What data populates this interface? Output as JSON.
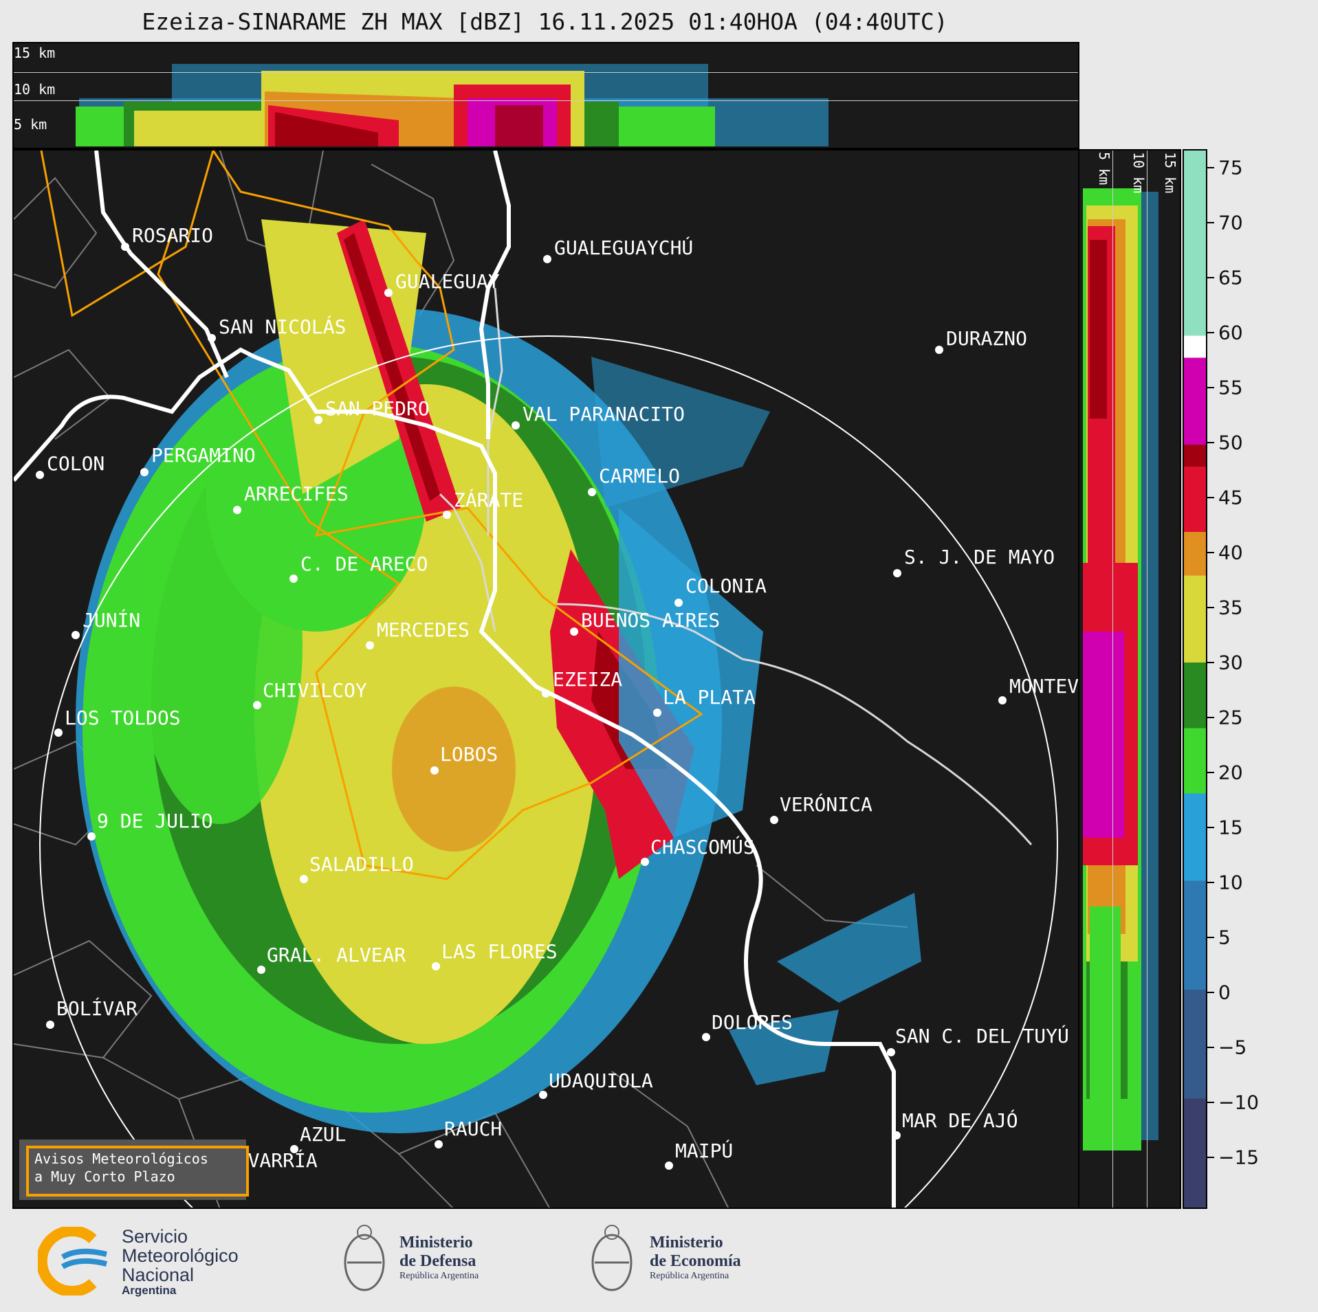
{
  "title": "Ezeiza-SINARAME ZH MAX [dBZ] 16.11.2025 01:40HOA (04:40UTC)",
  "top_panel": {
    "height_labels": [
      "15 km",
      "10 km",
      "5 km"
    ]
  },
  "side_panel": {
    "height_labels": [
      "5 km",
      "10 km",
      "15 km"
    ]
  },
  "colorbar": {
    "ticks": [
      "75",
      "70",
      "65",
      "60",
      "55",
      "50",
      "45",
      "40",
      "35",
      "30",
      "25",
      "20",
      "15",
      "10",
      "5",
      "0",
      "−5",
      "−10",
      "−15"
    ],
    "scale": [
      {
        "from": -20,
        "to": -10,
        "color": "#3b3f6b"
      },
      {
        "from": -10,
        "to": 0,
        "color": "#355a8c"
      },
      {
        "from": 0,
        "to": 10,
        "color": "#2f79b3"
      },
      {
        "from": 10,
        "to": 18,
        "color": "#2aa0d8"
      },
      {
        "from": 18,
        "to": 24,
        "color": "#3fd82e"
      },
      {
        "from": 24,
        "to": 30,
        "color": "#2a8a22"
      },
      {
        "from": 30,
        "to": 38,
        "color": "#d8d83a"
      },
      {
        "from": 38,
        "to": 42,
        "color": "#e09020"
      },
      {
        "from": 42,
        "to": 48,
        "color": "#e01030"
      },
      {
        "from": 48,
        "to": 50,
        "color": "#a00010"
      },
      {
        "from": 50,
        "to": 58,
        "color": "#d000b0"
      },
      {
        "from": 58,
        "to": 60,
        "color": "#ffffff"
      },
      {
        "from": 60,
        "to": 77,
        "color": "#8fe0c0"
      }
    ]
  },
  "cities": [
    {
      "name": "ROSARIO"
    },
    {
      "name": "GUALEGUAYCHÚ"
    },
    {
      "name": "GUALEGUAY"
    },
    {
      "name": "SAN NICOLÁS"
    },
    {
      "name": "DURAZNO"
    },
    {
      "name": "SAN PEDRO"
    },
    {
      "name": "VAL PARANACITO"
    },
    {
      "name": "COLON"
    },
    {
      "name": "PERGAMINO"
    },
    {
      "name": "CARMELO"
    },
    {
      "name": "ARRECIFES"
    },
    {
      "name": "ZÁRATE"
    },
    {
      "name": "S. J. DE MAYO"
    },
    {
      "name": "C. DE ARECO"
    },
    {
      "name": "COLONIA"
    },
    {
      "name": "JUNÍN"
    },
    {
      "name": "BUENOS AIRES"
    },
    {
      "name": "MERCEDES"
    },
    {
      "name": "EZEIZA"
    },
    {
      "name": "MONTEV"
    },
    {
      "name": "CHIVILCOY"
    },
    {
      "name": "LA PLATA"
    },
    {
      "name": "LOS TOLDOS"
    },
    {
      "name": "LOBOS"
    },
    {
      "name": "VERÓNICA"
    },
    {
      "name": "9 DE JULIO"
    },
    {
      "name": "CHASCOMÚS"
    },
    {
      "name": "SALADILLO"
    },
    {
      "name": "GRAL. ALVEAR"
    },
    {
      "name": "LAS FLORES"
    },
    {
      "name": "BOLÍVAR"
    },
    {
      "name": "DOLORES"
    },
    {
      "name": "SAN C. DEL TUYÚ"
    },
    {
      "name": "UDAQUIOLA"
    },
    {
      "name": "MAR DE AJÓ"
    },
    {
      "name": "AZUL"
    },
    {
      "name": "RAUCH"
    },
    {
      "name": "OLAVARRÍA"
    },
    {
      "name": "MAIPÚ"
    }
  ],
  "warning_box": {
    "line1": "Avisos Meteorológicos",
    "line2": "a Muy Corto Plazo"
  },
  "logos": {
    "smn": {
      "line1": "Servicio",
      "line2": "Meteorológico",
      "line3": "Nacional",
      "line4": "Argentina"
    },
    "defensa": {
      "line1": "Ministerio",
      "line2": "de Defensa",
      "line3": "República Argentina"
    },
    "economia": {
      "line1": "Ministerio",
      "line2": "de Economía",
      "line3": "República Argentina"
    }
  },
  "colors": {
    "background": "#e9e9e9",
    "panel": "#1a1a1a",
    "warning_outline": "#f7a000",
    "smn_blue": "#2b8fd0",
    "smn_orange": "#f7a500"
  }
}
